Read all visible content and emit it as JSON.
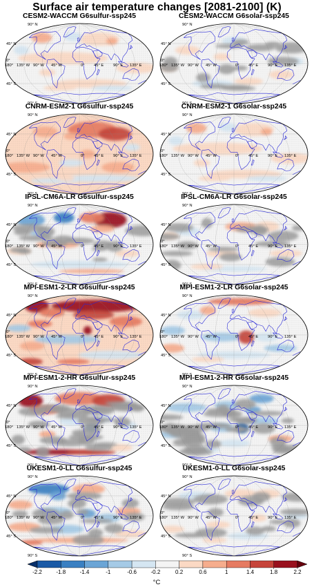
{
  "figure": {
    "title": "Surface air temperature changes [2081-2100] (K)",
    "unit_label": "°C",
    "colorbar": {
      "ticks": [
        "-2.2",
        "-1.8",
        "-1.4",
        "-1",
        "-0.6",
        "-0.2",
        "0.2",
        "0.6",
        "1",
        "1.4",
        "1.8",
        "2.2"
      ],
      "colors": [
        "#08306b",
        "#1a5aa6",
        "#3a80c2",
        "#6ba5d6",
        "#a5cae6",
        "#d5e6f2",
        "#f4f4f4",
        "#fbd9c4",
        "#f6ad8d",
        "#e67b62",
        "#c6443a",
        "#99111e",
        "#67000d"
      ]
    },
    "map_labels": {
      "lat": [
        "90° N",
        "45° N",
        "0°",
        "45° S",
        "90° S"
      ],
      "lon_west": [
        "180°",
        "135° W",
        "90° W",
        "45° W"
      ],
      "lon_east": [
        "0°",
        "45° E",
        "90° E",
        "135° E"
      ]
    },
    "panels": [
      {
        "title": "CESM2-WACCM G6sulfur-ssp245",
        "style": "mild-pos"
      },
      {
        "title": "CESM2-WACCM G6solar-ssp245",
        "style": "neutral"
      },
      {
        "title": "CNRM-ESM2-1 G6sulfur-ssp245",
        "style": "warm"
      },
      {
        "title": "CNRM-ESM2-1 G6solar-ssp245",
        "style": "mild-pos"
      },
      {
        "title": "IPSL-CM6A-LR G6sulfur-ssp245",
        "style": "mixed"
      },
      {
        "title": "IPSL-CM6A-LR G6solar-ssp245",
        "style": "mild-mixed"
      },
      {
        "title": "MPI-ESM1-2-LR G6sulfur-ssp245",
        "style": "hot"
      },
      {
        "title": "MPI-ESM1-2-LR G6solar-ssp245",
        "style": "mild-cool"
      },
      {
        "title": "MPI-ESM1-2-HR G6sulfur-ssp245",
        "style": "gray-hot"
      },
      {
        "title": "MPI-ESM1-2-HR G6solar-ssp245",
        "style": "gray-cool"
      },
      {
        "title": "UKESM1-0-LL G6sulfur-ssp245",
        "style": "mixed-cool"
      },
      {
        "title": "UKESM1-0-LL G6solar-ssp245",
        "style": "neutral-gray"
      }
    ]
  }
}
